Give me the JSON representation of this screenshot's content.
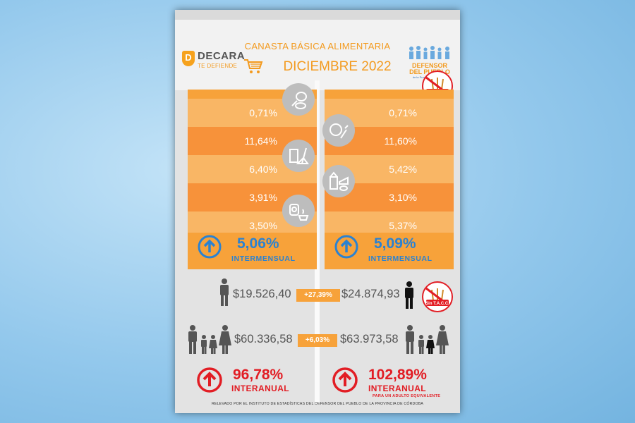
{
  "header": {
    "logo_left_name": "DECARA",
    "logo_left_tagline": "TE DEFIENDE",
    "title": "CANASTA BÁSICA ALIMENTARIA",
    "date": "DICIEMBRE 2022",
    "logo_right_line1": "DEFENSOR",
    "logo_right_line2": "DEL PUEBLO",
    "logo_right_line3": "de la Provincia de Córdoba"
  },
  "stacc_label": "Sin T.A.C.C.",
  "left_panel": {
    "rows": [
      "0,71%",
      "11,64%",
      "6,40%",
      "3,91%",
      "3,50%"
    ],
    "total": "5,06%",
    "total_label": "INTERMENSUAL"
  },
  "right_panel": {
    "rows": [
      "0,71%",
      "11,60%",
      "5,42%",
      "3,10%",
      "5,37%"
    ],
    "total": "5,09%",
    "total_label": "INTERMENSUAL"
  },
  "category_icons": [
    "meat-icon",
    "vegetables-icon",
    "bread-cereal-icon",
    "dairy-eggs-icon",
    "preserves-coffee-icon"
  ],
  "adult": {
    "left_value": "$19.526,40",
    "diff": "+27,39%",
    "right_value": "$24.874,93"
  },
  "family": {
    "left_value": "$60.336,58",
    "diff": "+6,03%",
    "right_value": "$63.973,58"
  },
  "interanual": {
    "left_value": "96,78%",
    "left_label": "INTERANUAL",
    "right_value": "102,89%",
    "right_label": "INTERANUAL",
    "right_sub": "PARA UN ADULTO EQUIVALENTE"
  },
  "footer": "RELEVADO POR EL INSTITUTO DE ESTADÍSTICAS DEL DEFENSOR DEL PUEBLO DE LA PROVINCIA DE CÓRDOBA",
  "colors": {
    "orange": "#f7a23a",
    "orange_light": "#f9b665",
    "orange_dark": "#f7923a",
    "blue": "#2a82d2",
    "red": "#e21d24",
    "background": "#93c8ec"
  }
}
